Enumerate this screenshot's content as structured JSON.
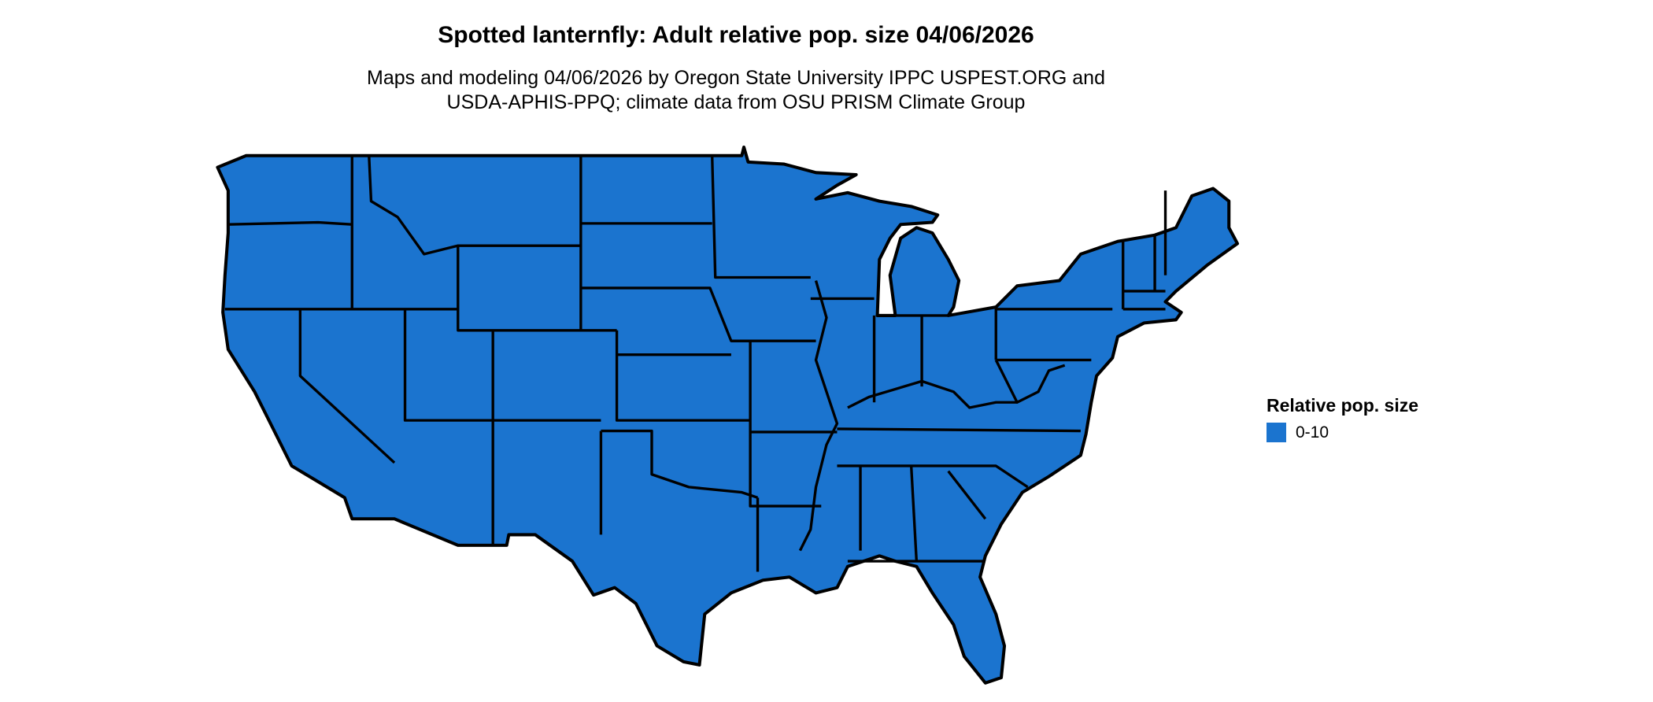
{
  "title": "Spotted lanternfly: Adult relative pop. size 04/06/2026",
  "subtitle_line1": "Maps and modeling 04/06/2026 by Oregon State University IPPC USPEST.ORG and",
  "subtitle_line2": "USDA-APHIS-PPQ; climate data from OSU PRISM Climate Group",
  "map": {
    "region": "Contiguous United States",
    "fill_color": "#1b74cf",
    "border_color": "#000000"
  },
  "legend": {
    "title": "Relative pop. size",
    "items": [
      {
        "label": "0-10",
        "color": "#1b74cf"
      }
    ]
  }
}
